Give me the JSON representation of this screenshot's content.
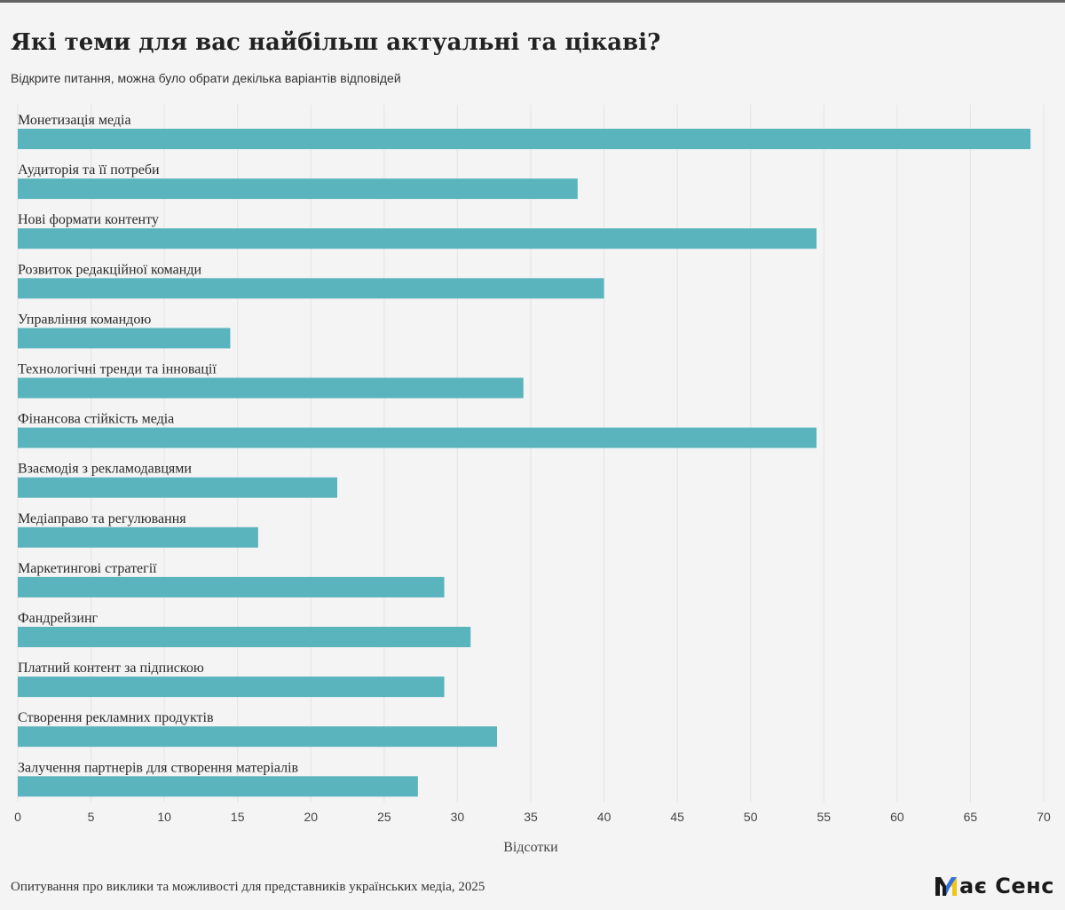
{
  "title": "Які теми для вас найбільш актуальні та цікаві?",
  "subtitle": "Відкрите питання, можна було обрати декілька варіантів відповідей",
  "source": "Опитування про виклики та можливості для представників українських медіа, 2025",
  "logo": {
    "text": "ає Сенс",
    "mark_icon": "mae-sens-m-logo-icon",
    "colors": [
      "#1a1a1a",
      "#2f6fe0",
      "#f2c418"
    ]
  },
  "colors": {
    "bar": "#5ab4bd",
    "grid": "#e4e4e4",
    "background": "#f4f4f4",
    "top_rule": "#636363"
  },
  "chart_data": {
    "type": "bar",
    "orientation": "horizontal",
    "categories": [
      "Монетизація медіа",
      "Аудиторія та її потреби",
      "Нові формати контенту",
      "Розвиток редакційної команди",
      "Управління командою",
      "Технологічні тренди та інновації",
      "Фінансова стійкість медіа",
      "Взаємодія з рекламодавцями",
      "Медіаправо та регулювання",
      "Маркетингові стратегії",
      "Фандрейзинг",
      "Платний контент за підпискою",
      "Створення рекламних продуктів",
      "Залучення партнерів для створення матеріалів"
    ],
    "values": [
      69.1,
      38.2,
      54.5,
      40.0,
      14.5,
      34.5,
      54.5,
      21.8,
      16.4,
      29.1,
      30.9,
      29.1,
      32.7,
      27.3
    ],
    "xlabel": "Відсотки",
    "ylabel": "",
    "xlim": [
      0,
      70
    ],
    "xticks": [
      "0",
      "5",
      "10",
      "15",
      "20",
      "25",
      "30",
      "35",
      "40",
      "45",
      "50",
      "55",
      "60",
      "65",
      "70"
    ],
    "grid": true
  }
}
